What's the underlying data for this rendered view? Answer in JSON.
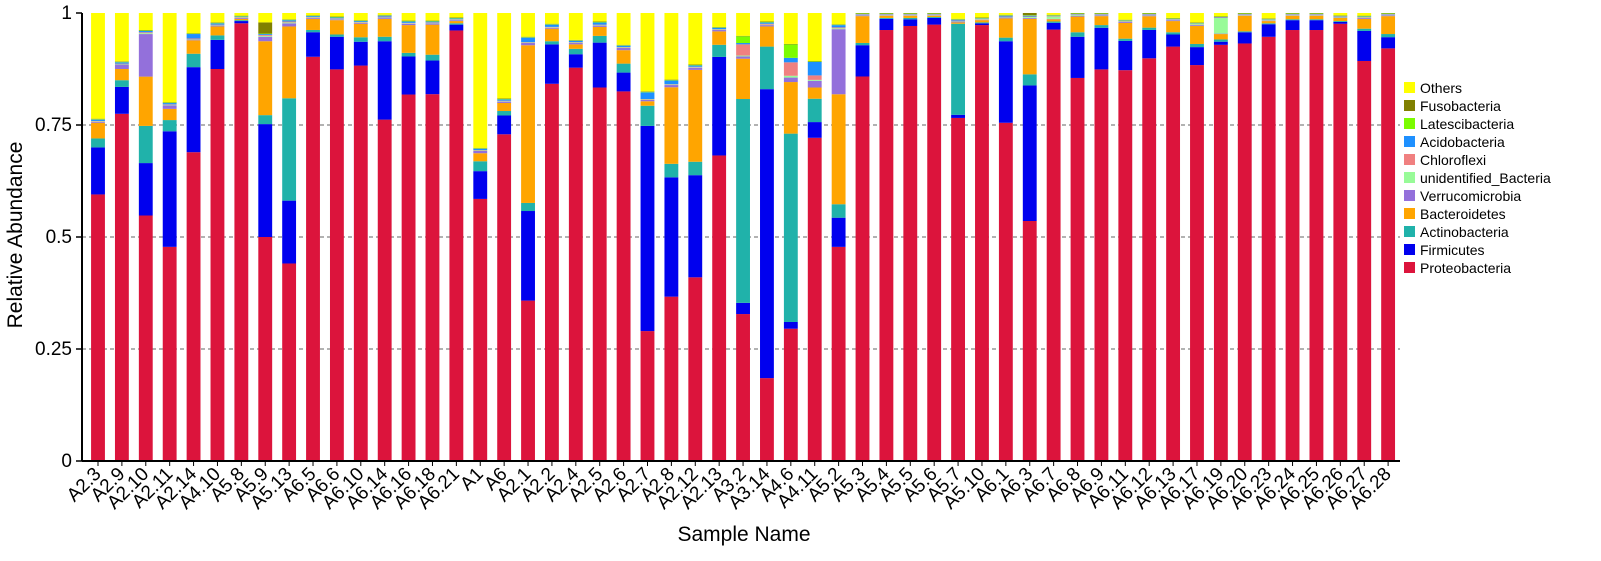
{
  "chart_data": {
    "type": "bar",
    "stacked": true,
    "title": "",
    "xlabel": "Sample Name",
    "ylabel": "Relative Abundance",
    "ylim": [
      0,
      1
    ],
    "yticks": [
      0,
      0.25,
      0.5,
      0.75,
      1
    ],
    "ytick_labels": [
      "0",
      "0.25",
      "0.5",
      "0.75",
      "1"
    ],
    "legend_position": "right",
    "categories": [
      "A2.3",
      "A2.9",
      "A2.10",
      "A2.11",
      "A2.14",
      "A4.10",
      "A5.8",
      "A5.9",
      "A5.13",
      "A6.5",
      "A6.6",
      "A6.10",
      "A6.14",
      "A6.16",
      "A6.18",
      "A6.21",
      "A1",
      "A6",
      "A2.1",
      "A2.2",
      "A2.4",
      "A2.5",
      "A2.6",
      "A2.7",
      "A2.8",
      "A2.12",
      "A2.13",
      "A3.2",
      "A3.14",
      "A4.6",
      "A4.11",
      "A5.2",
      "A5.3",
      "A5.4",
      "A5.5",
      "A5.6",
      "A5.7",
      "A5.10",
      "A6.1",
      "A6.3",
      "A6.7",
      "A6.8",
      "A6.9",
      "A6.11",
      "A6.12",
      "A6.13",
      "A6.17",
      "A6.19",
      "A6.20",
      "A6.23",
      "A6.24",
      "A6.25",
      "A6.26",
      "A6.27",
      "A6.28"
    ],
    "series": [
      {
        "name": "Proteobacteria",
        "color": "#DC143C",
        "values": [
          0.595,
          0.775,
          0.548,
          0.478,
          0.69,
          0.875,
          0.977,
          0.5,
          0.44,
          0.905,
          0.875,
          0.88,
          0.762,
          0.818,
          0.818,
          0.962,
          0.585,
          0.73,
          0.358,
          0.842,
          0.878,
          0.832,
          0.825,
          0.29,
          0.365,
          0.41,
          0.682,
          0.328,
          0.185,
          0.295,
          0.72,
          0.477,
          0.86,
          0.962,
          0.972,
          0.978,
          0.765,
          0.975,
          0.755,
          0.54,
          0.962,
          0.855,
          0.875,
          0.868,
          0.88,
          0.925,
          0.882,
          0.928,
          0.932,
          0.945,
          0.962,
          0.962,
          0.975,
          0.892,
          0.922
        ]
      },
      {
        "name": "Firmicutes",
        "color": "#0000EE",
        "values": [
          0.105,
          0.06,
          0.117,
          0.258,
          0.19,
          0.065,
          0.005,
          0.252,
          0.14,
          0.055,
          0.073,
          0.053,
          0.175,
          0.085,
          0.075,
          0.013,
          0.062,
          0.042,
          0.2,
          0.088,
          0.03,
          0.1,
          0.042,
          0.458,
          0.265,
          0.228,
          0.22,
          0.025,
          0.645,
          0.015,
          0.035,
          0.065,
          0.07,
          0.025,
          0.015,
          0.015,
          0.007,
          0.004,
          0.182,
          0.305,
          0.015,
          0.092,
          0.093,
          0.065,
          0.062,
          0.027,
          0.04,
          0.007,
          0.025,
          0.028,
          0.022,
          0.022,
          0.004,
          0.067,
          0.025
        ]
      },
      {
        "name": "Actinobacteria",
        "color": "#20B2AA",
        "values": [
          0.02,
          0.015,
          0.083,
          0.025,
          0.03,
          0.01,
          0.002,
          0.02,
          0.228,
          0.005,
          0.005,
          0.01,
          0.01,
          0.008,
          0.013,
          0.003,
          0.022,
          0.01,
          0.018,
          0.007,
          0.012,
          0.015,
          0.02,
          0.045,
          0.03,
          0.03,
          0.027,
          0.455,
          0.095,
          0.42,
          0.052,
          0.03,
          0.005,
          0.002,
          0.003,
          0.002,
          0.203,
          0.002,
          0.008,
          0.025,
          0.003,
          0.01,
          0.006,
          0.005,
          0.005,
          0.005,
          0.007,
          0.005,
          0.002,
          0.002,
          0.002,
          0.002,
          0.002,
          0.005,
          0.007
        ]
      },
      {
        "name": "Bacteroidetes",
        "color": "#FFA500",
        "values": [
          0.035,
          0.025,
          0.11,
          0.025,
          0.03,
          0.02,
          0.003,
          0.165,
          0.16,
          0.025,
          0.032,
          0.03,
          0.04,
          0.062,
          0.067,
          0.005,
          0.018,
          0.018,
          0.352,
          0.028,
          0.01,
          0.02,
          0.03,
          0.01,
          0.17,
          0.205,
          0.03,
          0.09,
          0.045,
          0.115,
          0.025,
          0.245,
          0.06,
          0.005,
          0.005,
          0.003,
          0.003,
          0.005,
          0.043,
          0.125,
          0.005,
          0.035,
          0.02,
          0.035,
          0.025,
          0.025,
          0.04,
          0.012,
          0.035,
          0.005,
          0.008,
          0.008,
          0.007,
          0.022,
          0.04
        ]
      },
      {
        "name": "Verrucomicrobia",
        "color": "#9370DB",
        "values": [
          0.002,
          0.01,
          0.095,
          0.008,
          0.002,
          0.002,
          0.002,
          0.01,
          0.007,
          0.002,
          0.002,
          0.002,
          0.003,
          0.003,
          0.003,
          0.002,
          0.005,
          0.003,
          0.005,
          0.002,
          0.003,
          0.003,
          0.005,
          0.003,
          0.005,
          0.005,
          0.003,
          0.005,
          0.003,
          0.01,
          0.015,
          0.145,
          0.002,
          0.001,
          0.001,
          0.001,
          0.002,
          0.001,
          0.002,
          0.002,
          0.001,
          0.002,
          0.002,
          0.002,
          0.002,
          0.002,
          0.002,
          0.001,
          0.001,
          0.001,
          0.001,
          0.001,
          0.001,
          0.002,
          0.002
        ]
      },
      {
        "name": "unidentified_Bacteria",
        "color": "#98FB98",
        "values": [
          0.001,
          0.001,
          0.002,
          0.001,
          0.001,
          0.001,
          0.001,
          0.002,
          0.002,
          0.001,
          0.001,
          0.001,
          0.001,
          0.001,
          0.001,
          0.001,
          0.001,
          0.001,
          0.001,
          0.001,
          0.001,
          0.001,
          0.001,
          0.001,
          0.001,
          0.001,
          0.001,
          0.002,
          0.001,
          0.004,
          0.002,
          0.002,
          0.001,
          0.001,
          0.001,
          0.001,
          0.001,
          0.001,
          0.001,
          0.002,
          0.005,
          0.002,
          0.001,
          0.001,
          0.001,
          0.001,
          0.002,
          0.035,
          0.001,
          0.001,
          0.001,
          0.001,
          0.001,
          0.001,
          0.001
        ]
      },
      {
        "name": "Chloroflexi",
        "color": "#F08080",
        "values": [
          0.001,
          0.001,
          0.002,
          0.001,
          0.001,
          0.001,
          0.001,
          0.002,
          0.002,
          0.001,
          0.001,
          0.001,
          0.001,
          0.001,
          0.001,
          0.001,
          0.001,
          0.001,
          0.001,
          0.001,
          0.001,
          0.001,
          0.001,
          0.001,
          0.001,
          0.001,
          0.001,
          0.025,
          0.002,
          0.03,
          0.01,
          0.002,
          0.001,
          0.001,
          0.001,
          0.001,
          0.001,
          0.001,
          0.001,
          0.001,
          0.001,
          0.001,
          0.001,
          0.001,
          0.001,
          0.001,
          0.001,
          0.001,
          0.001,
          0.001,
          0.001,
          0.001,
          0.001,
          0.001,
          0.001
        ]
      },
      {
        "name": "Acidobacteria",
        "color": "#1E90FF",
        "values": [
          0.003,
          0.003,
          0.003,
          0.003,
          0.01,
          0.003,
          0.001,
          0.002,
          0.003,
          0.002,
          0.002,
          0.002,
          0.002,
          0.003,
          0.002,
          0.002,
          0.003,
          0.003,
          0.01,
          0.005,
          0.003,
          0.005,
          0.003,
          0.015,
          0.008,
          0.003,
          0.003,
          0.003,
          0.003,
          0.01,
          0.03,
          0.005,
          0.001,
          0.001,
          0.001,
          0.001,
          0.002,
          0.001,
          0.002,
          0.002,
          0.001,
          0.001,
          0.001,
          0.001,
          0.001,
          0.001,
          0.001,
          0.001,
          0.001,
          0.001,
          0.001,
          0.001,
          0.001,
          0.001,
          0.001
        ]
      },
      {
        "name": "Latescibacteria",
        "color": "#7CFC00",
        "values": [
          0.001,
          0.001,
          0.001,
          0.001,
          0.001,
          0.001,
          0.001,
          0.001,
          0.001,
          0.001,
          0.001,
          0.001,
          0.001,
          0.001,
          0.001,
          0.001,
          0.001,
          0.001,
          0.001,
          0.001,
          0.001,
          0.001,
          0.001,
          0.001,
          0.001,
          0.001,
          0.001,
          0.015,
          0.001,
          0.03,
          0.001,
          0.001,
          0.001,
          0.001,
          0.001,
          0.001,
          0.001,
          0.001,
          0.001,
          0.001,
          0.001,
          0.001,
          0.001,
          0.001,
          0.001,
          0.001,
          0.001,
          0.001,
          0.001,
          0.001,
          0.001,
          0.001,
          0.001,
          0.001,
          0.001
        ]
      },
      {
        "name": "Fusobacteria",
        "color": "#808000",
        "values": [
          0.001,
          0.001,
          0.001,
          0.001,
          0.001,
          0.001,
          0.001,
          0.025,
          0.001,
          0.001,
          0.001,
          0.001,
          0.001,
          0.001,
          0.001,
          0.001,
          0.001,
          0.001,
          0.001,
          0.001,
          0.001,
          0.001,
          0.001,
          0.001,
          0.001,
          0.001,
          0.001,
          0.001,
          0.001,
          0.001,
          0.001,
          0.001,
          0.001,
          0.001,
          0.001,
          0.001,
          0.001,
          0.001,
          0.001,
          0.005,
          0.001,
          0.001,
          0.001,
          0.001,
          0.001,
          0.001,
          0.001,
          0.001,
          0.001,
          0.001,
          0.001,
          0.001,
          0.001,
          0.001,
          0.001
        ]
      },
      {
        "name": "Others",
        "color": "#FFFF00",
        "values": [
          0.236,
          0.108,
          0.038,
          0.199,
          0.045,
          0.021,
          0.006,
          0.021,
          0.014,
          0.005,
          0.008,
          0.016,
          0.004,
          0.017,
          0.017,
          0.01,
          0.301,
          0.191,
          0.053,
          0.024,
          0.06,
          0.019,
          0.071,
          0.175,
          0.148,
          0.115,
          0.031,
          0.051,
          0.019,
          0.069,
          0.107,
          0.025,
          0.0,
          0.0,
          0.0,
          0.0,
          0.013,
          0.01,
          0.004,
          0.0,
          0.004,
          0.0,
          0.0,
          0.015,
          0.0,
          0.011,
          0.021,
          0.007,
          0.0,
          0.012,
          0.0,
          0.0,
          0.005,
          0.006,
          0.0
        ]
      }
    ]
  }
}
